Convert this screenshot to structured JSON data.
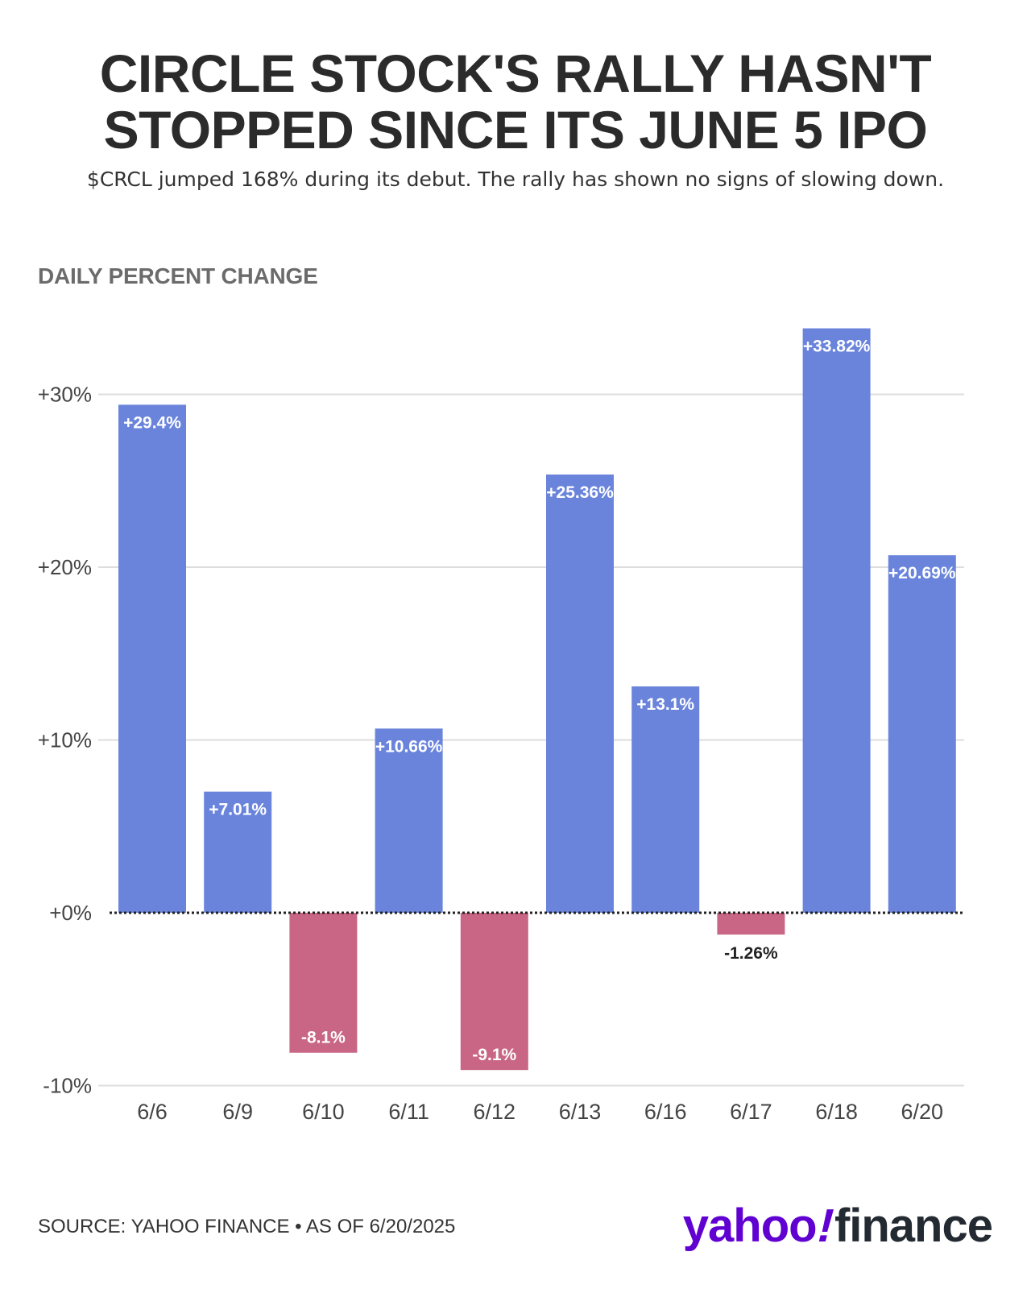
{
  "header": {
    "title_line1": "CIRCLE STOCK'S RALLY HASN'T",
    "title_line2": "STOPPED SINCE ITS JUNE 5 IPO",
    "subtitle": "$CRCL jumped 168% during its debut. The rally has shown no signs of slowing down."
  },
  "footer": {
    "source": "SOURCE: YAHOO FINANCE • AS OF 6/20/2025",
    "logo_yahoo": "yahoo",
    "logo_bang": "!",
    "logo_finance": "finance"
  },
  "colors": {
    "positive": "#6a84dc",
    "negative": "#c96686",
    "grid": "#dddddd",
    "zero_line": "#222222",
    "logo_purple": "#6001d2"
  },
  "chart_data": {
    "type": "bar",
    "ylabel": "DAILY PERCENT CHANGE",
    "categories": [
      "6/6",
      "6/9",
      "6/10",
      "6/11",
      "6/12",
      "6/13",
      "6/16",
      "6/17",
      "6/18",
      "6/20"
    ],
    "values": [
      29.4,
      7.01,
      -8.1,
      10.66,
      -9.1,
      25.36,
      13.1,
      -1.26,
      33.82,
      20.69
    ],
    "labels": [
      "+29.4%",
      "+7.01%",
      "-8.1%",
      "+10.66%",
      "-9.1%",
      "+25.36%",
      "+13.1%",
      "-1.26%",
      "+33.82%",
      "+20.69%"
    ],
    "yticks": [
      30,
      20,
      10,
      0,
      -10
    ],
    "ytick_labels": [
      "+30%",
      "+20%",
      "+10%",
      "+0%",
      "-10%"
    ],
    "ylim": [
      -10,
      34
    ],
    "grid": true,
    "legend": "none"
  }
}
